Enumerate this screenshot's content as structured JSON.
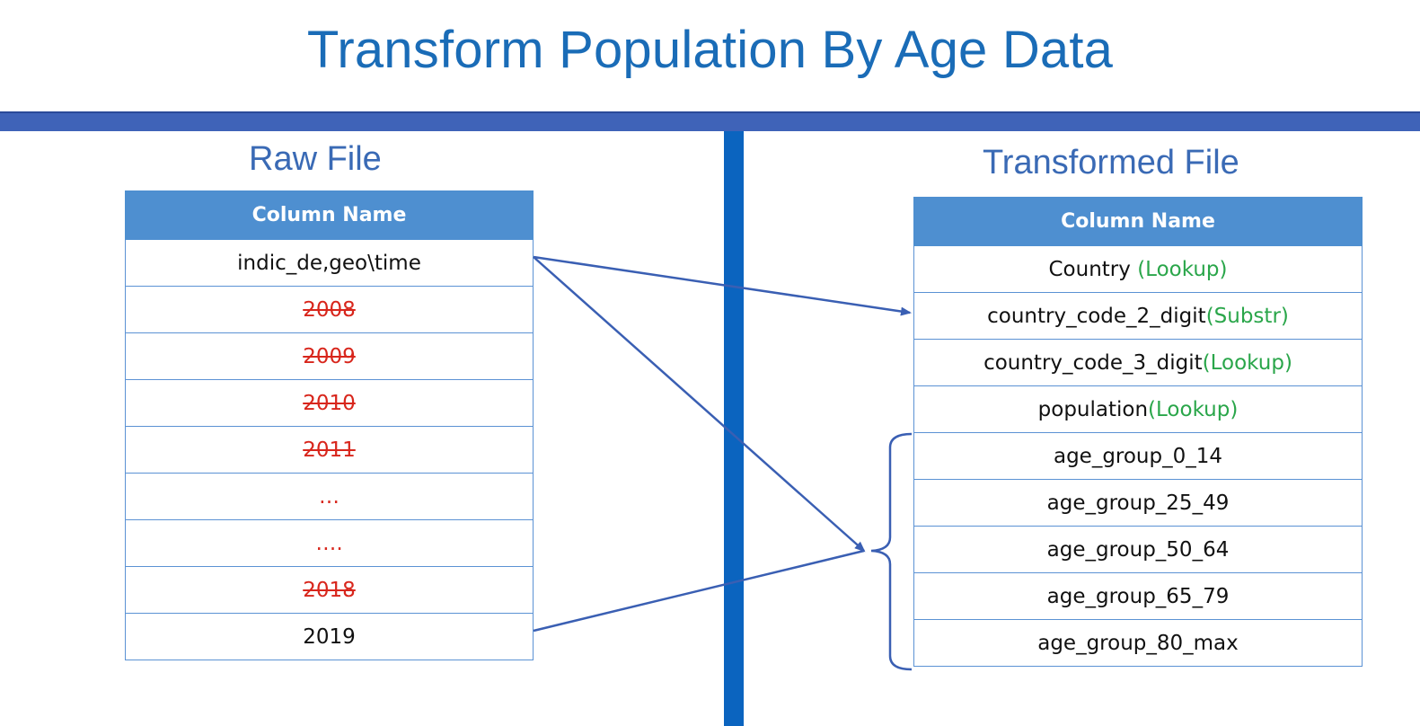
{
  "title": "Transform Population By Age Data",
  "raw": {
    "heading": "Raw File",
    "column_header": "Column Name",
    "rows": [
      {
        "text": "indic_de,geo\\time",
        "style": "normal"
      },
      {
        "text": "2008",
        "style": "struck"
      },
      {
        "text": "2009",
        "style": "struck"
      },
      {
        "text": "2010",
        "style": "struck"
      },
      {
        "text": "2011",
        "style": "struck"
      },
      {
        "text": "…",
        "style": "dots"
      },
      {
        "text": "….",
        "style": "dots"
      },
      {
        "text": "2018",
        "style": "struck"
      },
      {
        "text": "2019",
        "style": "normal"
      }
    ]
  },
  "transformed": {
    "heading": "Transformed File",
    "column_header": "Column Name",
    "rows": [
      {
        "name": "Country ",
        "note": "(Lookup)"
      },
      {
        "name": "country_code_2_digit",
        "note": "(Substr)"
      },
      {
        "name": "country_code_3_digit",
        "note": "(Lookup)"
      },
      {
        "name": "population",
        "note": "(Lookup)"
      },
      {
        "name": "age_group_0_14",
        "note": ""
      },
      {
        "name": "age_group_25_49",
        "note": ""
      },
      {
        "name": "age_group_50_64",
        "note": ""
      },
      {
        "name": "age_group_65_79",
        "note": ""
      },
      {
        "name": "age_group_80_max",
        "note": ""
      }
    ]
  },
  "colors": {
    "title": "#1a6cb7",
    "band": "#3f63b8",
    "divider": "#0b64bf",
    "header_fill": "#4e8fd0",
    "struck_text": "#d8261c",
    "note_text": "#2aa64a",
    "arrow": "#3a5fb3"
  }
}
